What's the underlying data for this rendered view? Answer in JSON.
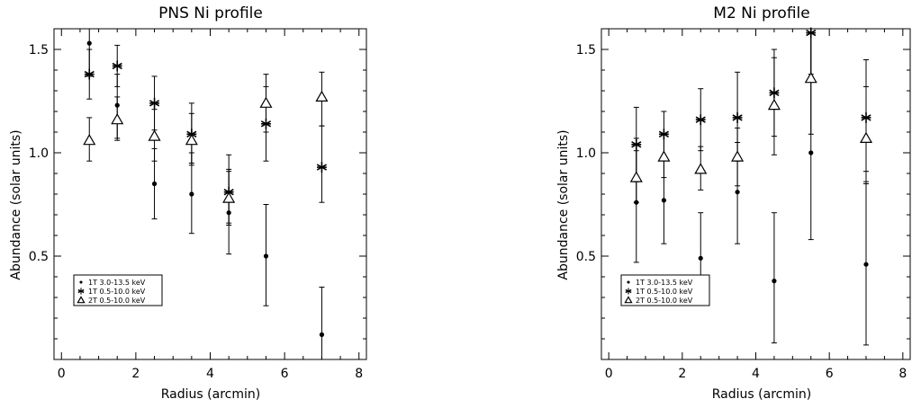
{
  "chart_data": [
    {
      "type": "scatter",
      "title": "PNS Ni profile",
      "xlabel": "Radius (arcmin)",
      "ylabel": "Abundance (solar units)",
      "xlim": [
        -0.2,
        8.2
      ],
      "ylim": [
        0.0,
        1.6
      ],
      "xticks": [
        0,
        2,
        4,
        6,
        8
      ],
      "yticks": [
        0.5,
        1.0,
        1.5
      ],
      "tick_labels_x": [
        "0",
        "2",
        "4",
        "6",
        "8"
      ],
      "tick_labels_y": [
        "0.5",
        "1.0",
        "1.5"
      ],
      "legend_position": "lower-left",
      "series": [
        {
          "name": "1T 3.0-13.5 keV",
          "marker": "dot",
          "points": [
            {
              "x": 0.75,
              "y": 1.53,
              "ylo": 1.37,
              "yhi": 1.6
            },
            {
              "x": 1.5,
              "y": 1.23,
              "ylo": 1.07,
              "yhi": 1.38
            },
            {
              "x": 2.5,
              "y": 0.85,
              "ylo": 0.68,
              "yhi": 1.02
            },
            {
              "x": 3.5,
              "y": 0.8,
              "ylo": 0.61,
              "yhi": 1.0
            },
            {
              "x": 4.5,
              "y": 0.71,
              "ylo": 0.51,
              "yhi": 0.91
            },
            {
              "x": 5.5,
              "y": 0.5,
              "ylo": 0.26,
              "yhi": 0.75
            },
            {
              "x": 7.0,
              "y": 0.12,
              "ylo": 0.0,
              "yhi": 0.35
            }
          ]
        },
        {
          "name": "1T 0.5-10.0 keV",
          "marker": "asterisk",
          "points": [
            {
              "x": 0.75,
              "y": 1.38,
              "ylo": 1.26,
              "yhi": 1.5
            },
            {
              "x": 1.5,
              "y": 1.42,
              "ylo": 1.32,
              "yhi": 1.52
            },
            {
              "x": 2.5,
              "y": 1.24,
              "ylo": 1.11,
              "yhi": 1.37
            },
            {
              "x": 3.5,
              "y": 1.09,
              "ylo": 0.95,
              "yhi": 1.24
            },
            {
              "x": 4.5,
              "y": 0.81,
              "ylo": 0.66,
              "yhi": 0.99
            },
            {
              "x": 5.5,
              "y": 1.14,
              "ylo": 0.96,
              "yhi": 1.32
            },
            {
              "x": 7.0,
              "y": 0.93,
              "ylo": 0.76,
              "yhi": 1.13
            }
          ]
        },
        {
          "name": "2T 0.5-10.0 keV",
          "marker": "triangle",
          "points": [
            {
              "x": 0.75,
              "y": 1.06,
              "ylo": 0.96,
              "yhi": 1.17
            },
            {
              "x": 1.5,
              "y": 1.16,
              "ylo": 1.06,
              "yhi": 1.27
            },
            {
              "x": 2.5,
              "y": 1.08,
              "ylo": 0.96,
              "yhi": 1.21
            },
            {
              "x": 3.5,
              "y": 1.06,
              "ylo": 0.94,
              "yhi": 1.19
            },
            {
              "x": 4.5,
              "y": 0.78,
              "ylo": 0.65,
              "yhi": 0.92
            },
            {
              "x": 5.5,
              "y": 1.24,
              "ylo": 1.1,
              "yhi": 1.38
            },
            {
              "x": 7.0,
              "y": 1.27,
              "ylo": 1.13,
              "yhi": 1.39
            }
          ]
        }
      ]
    },
    {
      "type": "scatter",
      "title": "M2 Ni profile",
      "xlabel": "Radius (arcmin)",
      "ylabel": "Abundance (solar units)",
      "xlim": [
        -0.2,
        8.2
      ],
      "ylim": [
        0.0,
        1.6
      ],
      "xticks": [
        0,
        2,
        4,
        6,
        8
      ],
      "yticks": [
        0.5,
        1.0,
        1.5
      ],
      "tick_labels_x": [
        "0",
        "2",
        "4",
        "6",
        "8"
      ],
      "tick_labels_y": [
        "0.5",
        "1.0",
        "1.5"
      ],
      "legend_position": "lower-left",
      "series": [
        {
          "name": "1T 3.0-13.5 keV",
          "marker": "dot",
          "points": [
            {
              "x": 0.75,
              "y": 0.76,
              "ylo": 0.47,
              "yhi": 1.07
            },
            {
              "x": 1.5,
              "y": 0.77,
              "ylo": 0.56,
              "yhi": 0.98
            },
            {
              "x": 2.5,
              "y": 0.49,
              "ylo": 0.27,
              "yhi": 0.71
            },
            {
              "x": 3.5,
              "y": 0.81,
              "ylo": 0.56,
              "yhi": 1.05
            },
            {
              "x": 4.5,
              "y": 0.38,
              "ylo": 0.08,
              "yhi": 0.71
            },
            {
              "x": 5.5,
              "y": 1.0,
              "ylo": 0.58,
              "yhi": 1.6
            },
            {
              "x": 7.0,
              "y": 0.46,
              "ylo": 0.07,
              "yhi": 0.86
            }
          ]
        },
        {
          "name": "1T 0.5-10.0 keV",
          "marker": "asterisk",
          "points": [
            {
              "x": 0.75,
              "y": 1.04,
              "ylo": 0.86,
              "yhi": 1.22
            },
            {
              "x": 1.5,
              "y": 1.09,
              "ylo": 0.98,
              "yhi": 1.2
            },
            {
              "x": 2.5,
              "y": 1.16,
              "ylo": 1.01,
              "yhi": 1.31
            },
            {
              "x": 3.5,
              "y": 1.17,
              "ylo": 0.96,
              "yhi": 1.39
            },
            {
              "x": 4.5,
              "y": 1.29,
              "ylo": 1.08,
              "yhi": 1.5
            },
            {
              "x": 5.5,
              "y": 1.58,
              "ylo": 1.38,
              "yhi": 1.6
            },
            {
              "x": 7.0,
              "y": 1.17,
              "ylo": 0.91,
              "yhi": 1.45
            }
          ]
        },
        {
          "name": "2T 0.5-10.0 keV",
          "marker": "triangle",
          "points": [
            {
              "x": 0.75,
              "y": 0.88,
              "ylo": 0.76,
              "yhi": 1.01
            },
            {
              "x": 1.5,
              "y": 0.98,
              "ylo": 0.88,
              "yhi": 1.09
            },
            {
              "x": 2.5,
              "y": 0.92,
              "ylo": 0.82,
              "yhi": 1.03
            },
            {
              "x": 3.5,
              "y": 0.98,
              "ylo": 0.84,
              "yhi": 1.12
            },
            {
              "x": 4.5,
              "y": 1.23,
              "ylo": 0.99,
              "yhi": 1.46
            },
            {
              "x": 5.5,
              "y": 1.36,
              "ylo": 1.09,
              "yhi": 1.6
            },
            {
              "x": 7.0,
              "y": 1.07,
              "ylo": 0.85,
              "yhi": 1.32
            }
          ]
        }
      ]
    }
  ]
}
